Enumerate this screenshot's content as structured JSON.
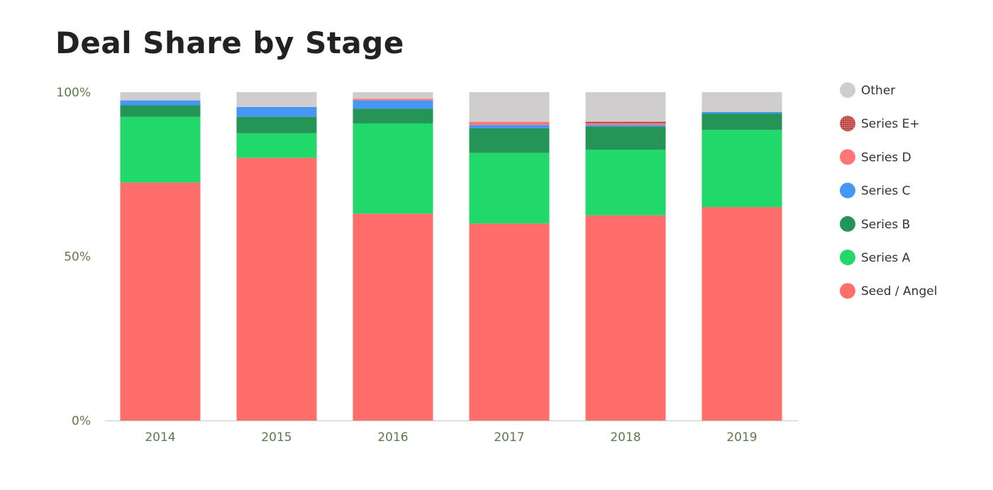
{
  "chart_data": {
    "type": "bar",
    "stacked": true,
    "title": "Deal Share by Stage",
    "xlabel": "",
    "ylabel": "",
    "ylim": [
      0,
      100
    ],
    "y_ticks": [
      {
        "value": 0,
        "label": "0%"
      },
      {
        "value": 50,
        "label": "50%"
      },
      {
        "value": 100,
        "label": "100%"
      }
    ],
    "categories": [
      "2014",
      "2015",
      "2016",
      "2017",
      "2018",
      "2019"
    ],
    "series": [
      {
        "name": "Seed / Angel",
        "color": "#ff6e6a",
        "values": [
          72.5,
          80.0,
          63.0,
          60.0,
          62.5,
          65.0
        ]
      },
      {
        "name": "Series A",
        "color": "#20d96a",
        "values": [
          20.0,
          7.5,
          27.5,
          21.5,
          20.0,
          23.5
        ]
      },
      {
        "name": "Series B",
        "color": "#249556",
        "values": [
          3.5,
          5.0,
          4.5,
          7.5,
          7.0,
          5.0
        ]
      },
      {
        "name": "Series C",
        "color": "#4497f2",
        "values": [
          1.5,
          3.0,
          2.5,
          1.0,
          0.5,
          0.5
        ]
      },
      {
        "name": "Series D",
        "color": "#ff7675",
        "values": [
          0.0,
          0.0,
          0.5,
          1.0,
          0.5,
          0.0
        ]
      },
      {
        "name": "Series E+",
        "color": "#c23b3b",
        "pattern": "dotted",
        "values": [
          0.0,
          0.0,
          0.0,
          0.0,
          0.5,
          0.0
        ]
      },
      {
        "name": "Other",
        "color": "#d0cdcf",
        "values": [
          2.5,
          4.5,
          2.0,
          9.0,
          9.0,
          6.0
        ]
      }
    ],
    "legend": {
      "position": "right",
      "order": [
        "Other",
        "Series E+",
        "Series D",
        "Series C",
        "Series B",
        "Series A",
        "Seed / Angel"
      ]
    },
    "grid": false
  }
}
